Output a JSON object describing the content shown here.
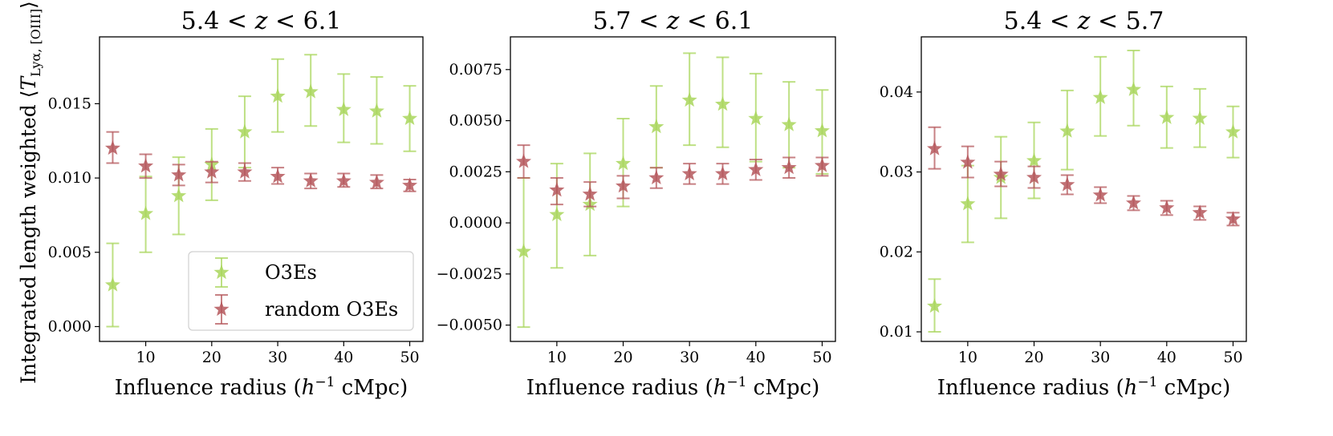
{
  "colors": {
    "O3Es": "#a9d65c",
    "random O3Es": "#b5575c"
  },
  "legend": {
    "location": "lower-right of first panel",
    "entries": [
      "O3Es",
      "random O3Es"
    ]
  },
  "ylabel": "Integrated length weighted ⟨T_{Lyα, [OIII]}⟩",
  "chart_data": [
    {
      "type": "scatter",
      "title": "5.4 < z < 6.1",
      "xlabel": "Influence radius (h⁻¹ cMpc)",
      "xlim": [
        3,
        52
      ],
      "ylim": [
        -0.001,
        0.0195
      ],
      "xticks": [
        10,
        20,
        30,
        40,
        50
      ],
      "yticks": [
        0.0,
        0.005,
        0.01,
        0.015
      ],
      "ytick_labels": [
        "0.000",
        "0.005",
        "0.010",
        "0.015"
      ],
      "x": [
        5,
        10,
        15,
        20,
        25,
        30,
        35,
        40,
        45,
        50
      ],
      "series": [
        {
          "name": "O3Es",
          "values": [
            0.0028,
            0.0076,
            0.0088,
            0.0109,
            0.0131,
            0.0155,
            0.0158,
            0.0146,
            0.0145,
            0.014
          ],
          "err_low": [
            0.0,
            0.005,
            0.0062,
            0.0085,
            0.0107,
            0.0131,
            0.0135,
            0.0124,
            0.0123,
            0.0118
          ],
          "err_high": [
            0.0056,
            0.0101,
            0.0114,
            0.0133,
            0.0155,
            0.018,
            0.0183,
            0.017,
            0.0168,
            0.0162
          ]
        },
        {
          "name": "random O3Es",
          "values": [
            0.012,
            0.0108,
            0.0102,
            0.0104,
            0.0104,
            0.0101,
            0.0098,
            0.0098,
            0.0097,
            0.0095
          ],
          "err_low": [
            0.011,
            0.01,
            0.0095,
            0.0097,
            0.0098,
            0.0096,
            0.0093,
            0.0094,
            0.0093,
            0.0091
          ],
          "err_high": [
            0.0131,
            0.0116,
            0.0109,
            0.0111,
            0.011,
            0.0107,
            0.0103,
            0.0103,
            0.0102,
            0.0099
          ]
        }
      ]
    },
    {
      "type": "scatter",
      "title": "5.7 < z < 6.1",
      "xlabel": "Influence radius (h⁻¹ cMpc)",
      "xlim": [
        3,
        52
      ],
      "ylim": [
        -0.0058,
        0.0091
      ],
      "xticks": [
        10,
        20,
        30,
        40,
        50
      ],
      "yticks": [
        -0.005,
        -0.0025,
        0.0,
        0.0025,
        0.005,
        0.0075
      ],
      "ytick_labels": [
        "−0.0050",
        "−0.0025",
        "0.0000",
        "0.0025",
        "0.0050",
        "0.0075"
      ],
      "x": [
        5,
        10,
        15,
        20,
        25,
        30,
        35,
        40,
        45,
        50
      ],
      "series": [
        {
          "name": "O3Es",
          "values": [
            -0.0014,
            0.0004,
            0.0009,
            0.0029,
            0.0047,
            0.006,
            0.0058,
            0.0051,
            0.0048,
            0.0045
          ],
          "err_low": [
            -0.0051,
            -0.0022,
            -0.0016,
            0.0008,
            0.0027,
            0.0038,
            0.0037,
            0.003,
            0.0027,
            0.0024
          ],
          "err_high": [
            0.0022,
            0.0029,
            0.0034,
            0.0051,
            0.0067,
            0.0083,
            0.0081,
            0.0073,
            0.0069,
            0.0065
          ]
        },
        {
          "name": "random O3Es",
          "values": [
            0.003,
            0.0016,
            0.0014,
            0.0018,
            0.0022,
            0.0024,
            0.0024,
            0.0026,
            0.0027,
            0.0028
          ],
          "err_low": [
            0.0022,
            0.0009,
            0.0008,
            0.0012,
            0.0017,
            0.0019,
            0.0019,
            0.0021,
            0.0022,
            0.0023
          ],
          "err_high": [
            0.0038,
            0.0022,
            0.002,
            0.0023,
            0.0027,
            0.0029,
            0.0029,
            0.0031,
            0.0032,
            0.0032
          ]
        }
      ]
    },
    {
      "type": "scatter",
      "title": "5.4 < z < 5.7",
      "xlabel": "Influence radius (h⁻¹ cMpc)",
      "xlim": [
        3,
        52
      ],
      "ylim": [
        0.0088,
        0.0469
      ],
      "xticks": [
        10,
        20,
        30,
        40,
        50
      ],
      "yticks": [
        0.01,
        0.02,
        0.03,
        0.04
      ],
      "ytick_labels": [
        "0.01",
        "0.02",
        "0.03",
        "0.04"
      ],
      "x": [
        5,
        10,
        15,
        20,
        25,
        30,
        35,
        40,
        45,
        50
      ],
      "series": [
        {
          "name": "O3Es",
          "values": [
            0.0132,
            0.026,
            0.0293,
            0.0314,
            0.0351,
            0.0393,
            0.0403,
            0.0368,
            0.0367,
            0.035
          ],
          "err_low": [
            0.01,
            0.0212,
            0.0242,
            0.0267,
            0.0303,
            0.0345,
            0.0358,
            0.033,
            0.0331,
            0.0318
          ],
          "err_high": [
            0.0166,
            0.0308,
            0.0344,
            0.0362,
            0.0402,
            0.0444,
            0.0452,
            0.0407,
            0.0404,
            0.0382
          ]
        },
        {
          "name": "random O3Es",
          "values": [
            0.0329,
            0.0312,
            0.0297,
            0.0293,
            0.0284,
            0.0271,
            0.0261,
            0.0255,
            0.0249,
            0.0241
          ],
          "err_low": [
            0.0304,
            0.0293,
            0.0282,
            0.028,
            0.0272,
            0.0261,
            0.0252,
            0.0246,
            0.024,
            0.0233
          ],
          "err_high": [
            0.0356,
            0.0332,
            0.0313,
            0.0307,
            0.0296,
            0.0281,
            0.027,
            0.0264,
            0.0257,
            0.0249
          ]
        }
      ]
    }
  ]
}
